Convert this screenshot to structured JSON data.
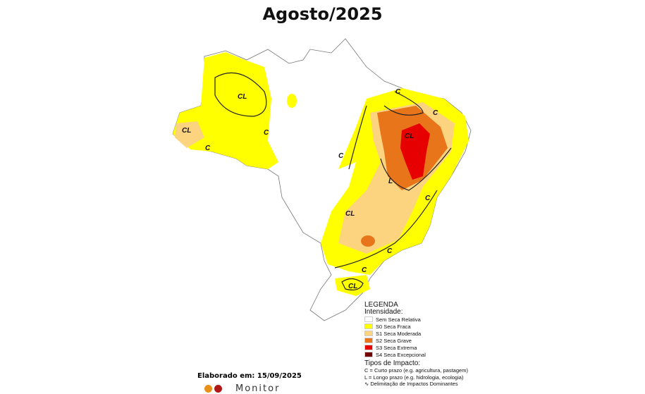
{
  "title": "Agosto/2025",
  "map_labels": [
    "CL",
    "C",
    "CL",
    "C",
    "C",
    "CL",
    "C",
    "L",
    "CL",
    "C",
    "C",
    "C",
    "CL",
    "C"
  ],
  "legend": {
    "heading": "LEGENDA",
    "intensity_title": "Intensidade:",
    "items": [
      {
        "label": "Sem Seca Relativa",
        "color": "#ffffff"
      },
      {
        "label": "S0 Seca Fraca",
        "color": "#ffff00"
      },
      {
        "label": "S1 Seca Moderada",
        "color": "#fcd37f"
      },
      {
        "label": "S2 Seca Grave",
        "color": "#e8751a"
      },
      {
        "label": "S3 Seca Extrema",
        "color": "#e60000"
      },
      {
        "label": "S4 Seca Excepcional",
        "color": "#730000"
      }
    ],
    "impact_title": "Tipos de Impacto:",
    "impact_c": "C = Curto prazo (e.g. agricultura, pastagem)",
    "impact_l": "L = Longo prazo (e.g. hidrologia, ecologia)",
    "impact_line": "Delimitação de Impactos Dominantes"
  },
  "footer": {
    "elaborated": "Elaborado em: 15/09/2025",
    "monitor": "Monitor"
  }
}
